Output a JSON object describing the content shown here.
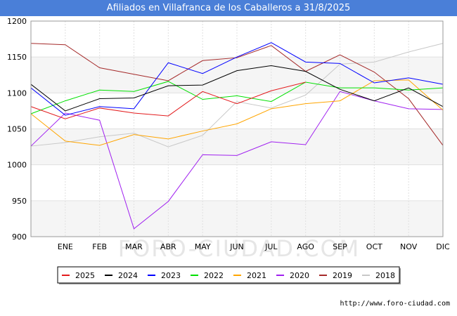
{
  "header": {
    "title": "Afiliados en Villafranca de los Caballeros a 31/8/2025"
  },
  "footer": {
    "url": "http://www.foro-ciudad.com"
  },
  "watermark": "FORO-CIUDAD.COM",
  "chart_data": {
    "type": "line",
    "title": "Afiliados en Villafranca de los Caballeros a 31/8/2025",
    "xlabel": "",
    "ylabel": "",
    "categories": [
      "",
      "ENE",
      "FEB",
      "MAR",
      "ABR",
      "MAY",
      "JUN",
      "JUL",
      "AGO",
      "SEP",
      "OCT",
      "NOV",
      "DIC"
    ],
    "ylim": [
      900,
      1200
    ],
    "yticks": [
      900,
      950,
      1000,
      1050,
      1100,
      1150,
      1200
    ],
    "grid": true,
    "legend_position": "bottom",
    "series": [
      {
        "name": "2025",
        "color": "#e31a1c",
        "values": [
          1081,
          1064,
          1079,
          1072,
          1068,
          1102,
          1085,
          1103,
          1115,
          null,
          null,
          null,
          null
        ]
      },
      {
        "name": "2024",
        "color": "#000000",
        "values": [
          1112,
          1075,
          1092,
          1093,
          1110,
          1111,
          1131,
          1138,
          1130,
          1105,
          1089,
          1107,
          1081
        ]
      },
      {
        "name": "2023",
        "color": "#0000ff",
        "values": [
          1107,
          1069,
          1081,
          1078,
          1142,
          1127,
          1150,
          1170,
          1143,
          1141,
          1114,
          1121,
          1112
        ]
      },
      {
        "name": "2022",
        "color": "#00e000",
        "values": [
          1071,
          1089,
          1104,
          1102,
          1116,
          1091,
          1096,
          1088,
          1115,
          1107,
          1107,
          1104,
          1107
        ]
      },
      {
        "name": "2021",
        "color": "#ffa500",
        "values": [
          1071,
          1033,
          1027,
          1042,
          1036,
          1047,
          1057,
          1078,
          1085,
          1089,
          1117,
          1118,
          1076
        ]
      },
      {
        "name": "2020",
        "color": "#a020f0",
        "values": [
          1026,
          1072,
          1062,
          911,
          949,
          1014,
          1013,
          1032,
          1028,
          1102,
          1089,
          1078,
          1077
        ]
      },
      {
        "name": "2019",
        "color": "#a52a2a",
        "values": [
          1169,
          1167,
          1135,
          1126,
          1117,
          1145,
          1149,
          1166,
          1130,
          1153,
          1129,
          1092,
          1027
        ]
      },
      {
        "name": "2018",
        "color": "#c8c8c8",
        "values": [
          1026,
          1031,
          1039,
          1044,
          1025,
          1041,
          1088,
          1079,
          1097,
          1140,
          1143,
          1157,
          1169
        ]
      }
    ]
  }
}
